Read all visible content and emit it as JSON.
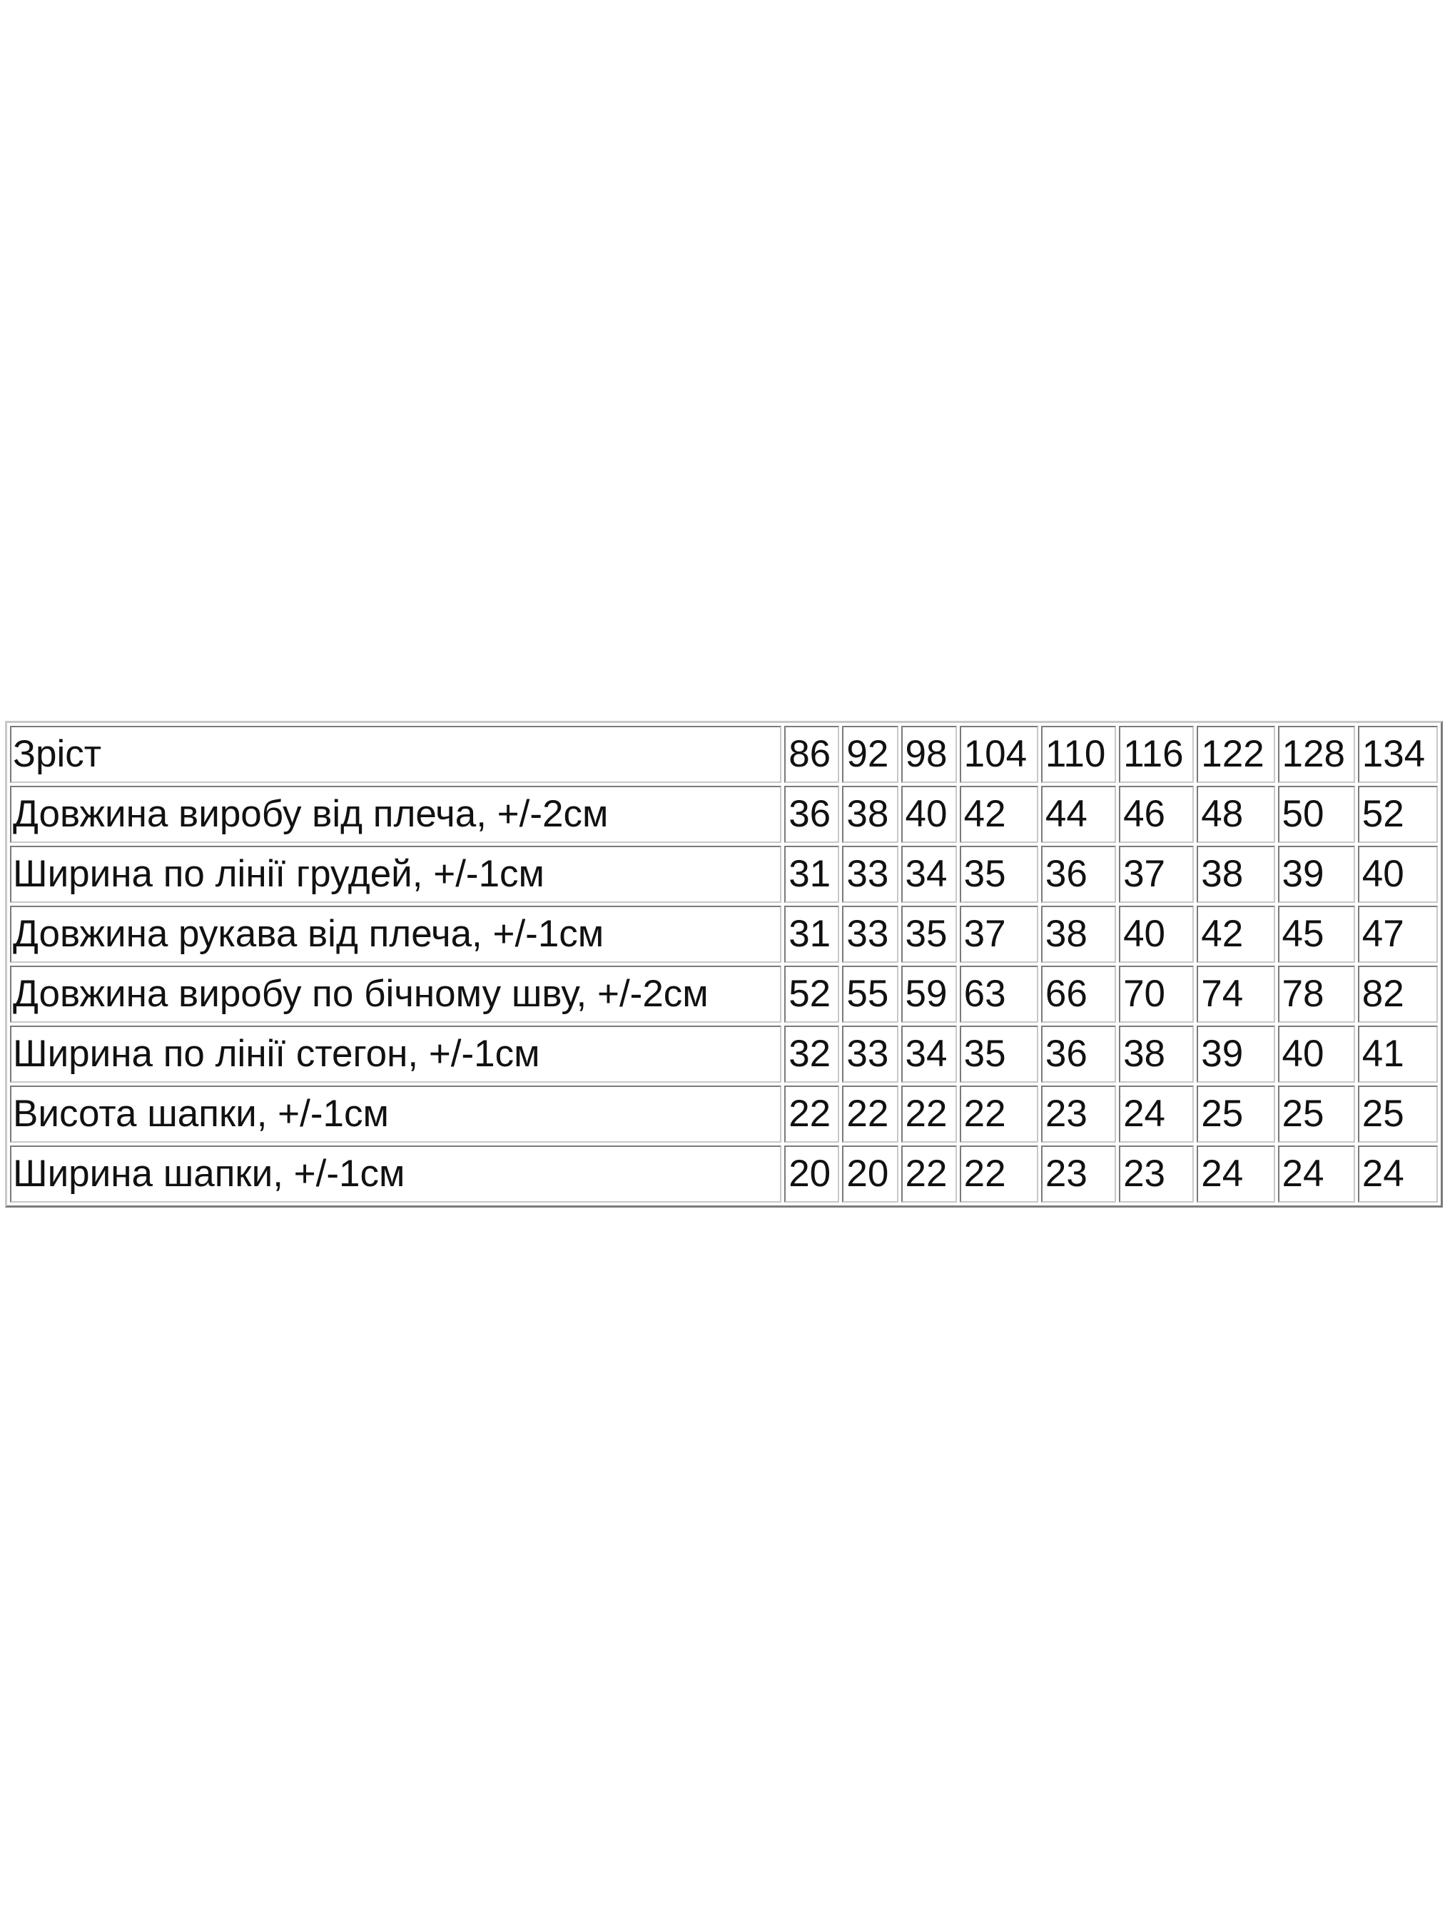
{
  "size_table": {
    "header": {
      "label": "Зріст",
      "sizes": [
        "86",
        "92",
        "98",
        "104",
        "110",
        "116",
        "122",
        "128",
        "134"
      ]
    },
    "rows": [
      {
        "label": "Довжина виробу від плеча, +/-2см",
        "values": [
          "36",
          "38",
          "40",
          "42",
          "44",
          "46",
          "48",
          "50",
          "52"
        ]
      },
      {
        "label": "Ширина по лінії грудей, +/-1см",
        "values": [
          "31",
          "33",
          "34",
          "35",
          "36",
          "37",
          "38",
          "39",
          "40"
        ]
      },
      {
        "label": "Довжина рукава від плеча, +/-1см",
        "values": [
          "31",
          "33",
          "35",
          "37",
          "38",
          "40",
          "42",
          "45",
          "47"
        ]
      },
      {
        "label": "Довжина виробу по бічному шву, +/-2см",
        "values": [
          "52",
          "55",
          "59",
          "63",
          "66",
          "70",
          "74",
          "78",
          "82"
        ]
      },
      {
        "label": "Ширина по лінії стегон, +/-1см",
        "values": [
          "32",
          "33",
          "34",
          "35",
          "36",
          "38",
          "39",
          "40",
          "41"
        ]
      },
      {
        "label": "Висота шапки, +/-1см",
        "values": [
          "22",
          "22",
          "22",
          "22",
          "23",
          "24",
          "25",
          "25",
          "25"
        ]
      },
      {
        "label": "Ширина шапки, +/-1см",
        "values": [
          "20",
          "20",
          "22",
          "22",
          "23",
          "23",
          "24",
          "24",
          "24"
        ]
      }
    ]
  }
}
